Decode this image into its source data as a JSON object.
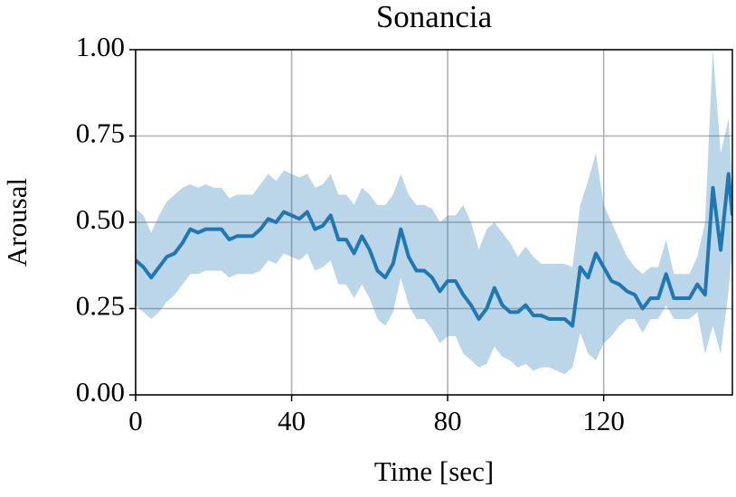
{
  "chart_data": {
    "type": "line",
    "title": "Sonancia",
    "xlabel": "Time [sec]",
    "ylabel": "Arousal",
    "color": "#1f77b4",
    "band_color": "#1f77b4",
    "band_opacity": 0.3,
    "grid": true,
    "xlim": [
      0,
      153
    ],
    "xticks": [
      0,
      40,
      80,
      120
    ],
    "ylim": [
      0,
      1
    ],
    "yticks": [
      {
        "value": 0,
        "label": "0.00"
      },
      {
        "value": 0.25,
        "label": "0.25"
      },
      {
        "value": 0.5,
        "label": "0.50"
      },
      {
        "value": 0.75,
        "label": "0.75"
      },
      {
        "value": 1,
        "label": "1.00"
      }
    ],
    "x": [
      0,
      2,
      4,
      6,
      8,
      10,
      12,
      14,
      16,
      18,
      20,
      22,
      24,
      26,
      28,
      30,
      32,
      34,
      36,
      38,
      40,
      42,
      44,
      46,
      48,
      50,
      52,
      54,
      56,
      58,
      60,
      62,
      64,
      66,
      68,
      70,
      72,
      74,
      76,
      78,
      80,
      82,
      84,
      86,
      88,
      90,
      92,
      94,
      96,
      98,
      100,
      102,
      104,
      106,
      108,
      110,
      112,
      114,
      116,
      118,
      120,
      122,
      124,
      126,
      128,
      130,
      132,
      134,
      136,
      138,
      140,
      142,
      144,
      146,
      148,
      150,
      152,
      153
    ],
    "values": [
      0.39,
      0.37,
      0.34,
      0.37,
      0.4,
      0.41,
      0.44,
      0.48,
      0.47,
      0.48,
      0.48,
      0.48,
      0.45,
      0.46,
      0.46,
      0.46,
      0.48,
      0.51,
      0.5,
      0.53,
      0.52,
      0.51,
      0.53,
      0.48,
      0.49,
      0.52,
      0.45,
      0.45,
      0.41,
      0.46,
      0.42,
      0.36,
      0.34,
      0.38,
      0.48,
      0.4,
      0.36,
      0.36,
      0.34,
      0.3,
      0.33,
      0.33,
      0.29,
      0.26,
      0.22,
      0.25,
      0.31,
      0.26,
      0.24,
      0.24,
      0.26,
      0.23,
      0.23,
      0.22,
      0.22,
      0.22,
      0.2,
      0.37,
      0.34,
      0.41,
      0.37,
      0.33,
      0.32,
      0.3,
      0.29,
      0.25,
      0.28,
      0.28,
      0.35,
      0.28,
      0.28,
      0.28,
      0.32,
      0.29,
      0.6,
      0.42,
      0.64,
      0.52
    ],
    "upper": [
      0.54,
      0.52,
      0.47,
      0.52,
      0.56,
      0.58,
      0.6,
      0.61,
      0.6,
      0.61,
      0.6,
      0.6,
      0.57,
      0.58,
      0.58,
      0.58,
      0.61,
      0.64,
      0.62,
      0.65,
      0.64,
      0.63,
      0.64,
      0.6,
      0.61,
      0.64,
      0.58,
      0.58,
      0.55,
      0.6,
      0.58,
      0.55,
      0.55,
      0.58,
      0.64,
      0.58,
      0.55,
      0.55,
      0.54,
      0.5,
      0.52,
      0.52,
      0.55,
      0.5,
      0.42,
      0.48,
      0.5,
      0.47,
      0.44,
      0.4,
      0.43,
      0.4,
      0.38,
      0.38,
      0.38,
      0.38,
      0.37,
      0.55,
      0.62,
      0.7,
      0.55,
      0.5,
      0.45,
      0.4,
      0.37,
      0.35,
      0.37,
      0.37,
      0.45,
      0.35,
      0.35,
      0.35,
      0.4,
      0.5,
      1.0,
      0.7,
      0.8,
      0.6
    ],
    "lower": [
      0.26,
      0.24,
      0.22,
      0.24,
      0.27,
      0.29,
      0.32,
      0.35,
      0.35,
      0.36,
      0.36,
      0.36,
      0.34,
      0.35,
      0.35,
      0.35,
      0.36,
      0.39,
      0.38,
      0.41,
      0.4,
      0.39,
      0.41,
      0.36,
      0.37,
      0.39,
      0.32,
      0.32,
      0.28,
      0.32,
      0.28,
      0.22,
      0.2,
      0.24,
      0.34,
      0.26,
      0.22,
      0.22,
      0.19,
      0.15,
      0.17,
      0.17,
      0.12,
      0.1,
      0.08,
      0.09,
      0.14,
      0.11,
      0.1,
      0.08,
      0.09,
      0.07,
      0.08,
      0.08,
      0.07,
      0.06,
      0.08,
      0.18,
      0.12,
      0.1,
      0.15,
      0.17,
      0.2,
      0.22,
      0.22,
      0.18,
      0.22,
      0.22,
      0.26,
      0.22,
      0.22,
      0.22,
      0.24,
      0.12,
      0.2,
      0.12,
      0.3,
      0.42
    ]
  }
}
